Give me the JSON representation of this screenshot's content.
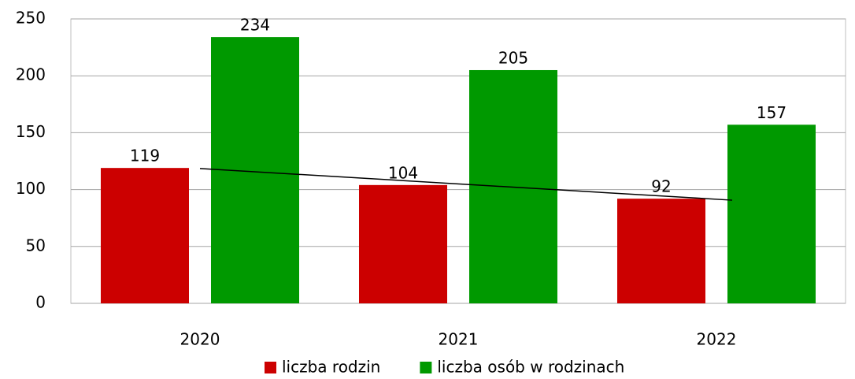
{
  "chart_data": {
    "type": "bar",
    "categories": [
      "2020",
      "2021",
      "2022"
    ],
    "series": [
      {
        "name": "liczba rodzin",
        "color": "#cc0000",
        "values": [
          119,
          104,
          92
        ],
        "trendline": "linear"
      },
      {
        "name": "liczba osób w rodzinach",
        "color": "#009900",
        "values": [
          234,
          205,
          157
        ]
      }
    ],
    "ylim": [
      0,
      250
    ],
    "yticks": [
      0,
      50,
      100,
      150,
      200,
      250
    ],
    "grid": true,
    "legend": "bottom"
  }
}
